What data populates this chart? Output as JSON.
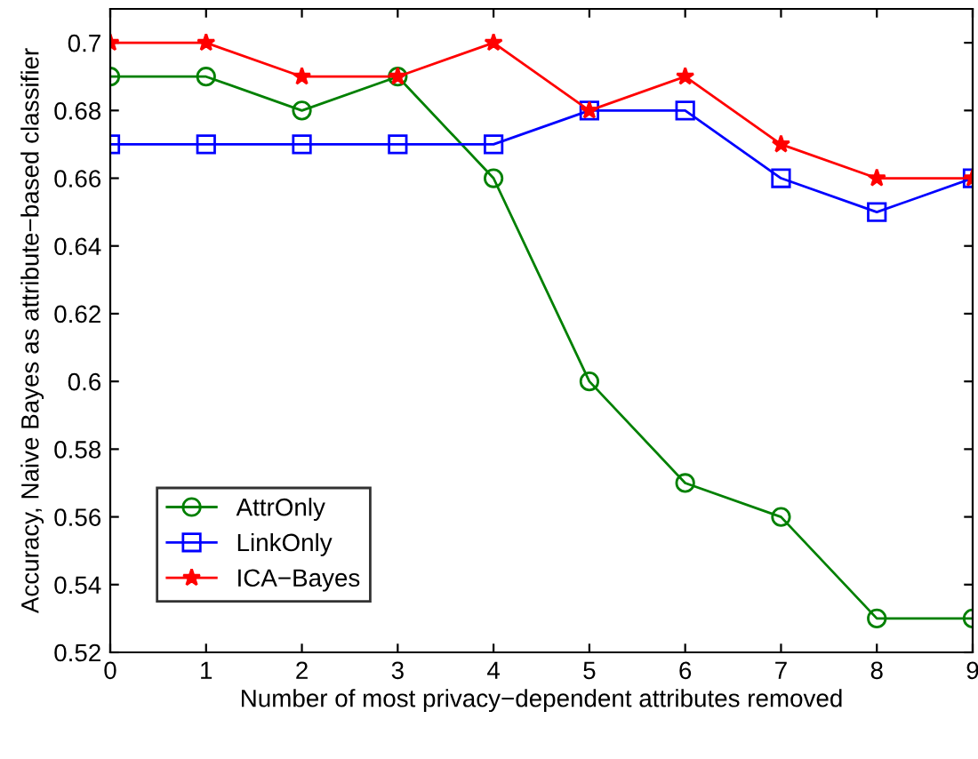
{
  "chart_data": {
    "type": "line",
    "xlabel": "Number of most privacy−dependent attributes removed",
    "ylabel": "Accuracy, Naive Bayes as attribute−based classifier",
    "x": [
      0,
      1,
      2,
      3,
      4,
      5,
      6,
      7,
      8,
      9
    ],
    "series": [
      {
        "name": "AttrOnly",
        "color": "#008000",
        "marker": "circle",
        "values": [
          0.69,
          0.69,
          0.68,
          0.69,
          0.66,
          0.6,
          0.57,
          0.56,
          0.53,
          0.53
        ]
      },
      {
        "name": "LinkOnly",
        "color": "#0000ff",
        "marker": "square",
        "values": [
          0.67,
          0.67,
          0.67,
          0.67,
          0.67,
          0.68,
          0.68,
          0.66,
          0.65,
          0.66
        ]
      },
      {
        "name": "ICA−Bayes",
        "color": "#ff0000",
        "marker": "star",
        "values": [
          0.7,
          0.7,
          0.69,
          0.69,
          0.7,
          0.68,
          0.69,
          0.67,
          0.66,
          0.66
        ]
      }
    ],
    "xlim": [
      0,
      9
    ],
    "xticks": [
      0,
      1,
      2,
      3,
      4,
      5,
      6,
      7,
      8,
      9
    ],
    "ylim": [
      0.52,
      0.71
    ],
    "yticks": [
      0.52,
      0.54,
      0.56,
      0.58,
      0.6,
      0.62,
      0.64,
      0.66,
      0.68,
      0.7
    ],
    "legend": "bottom left",
    "grid": false,
    "line_style": "solid"
  }
}
